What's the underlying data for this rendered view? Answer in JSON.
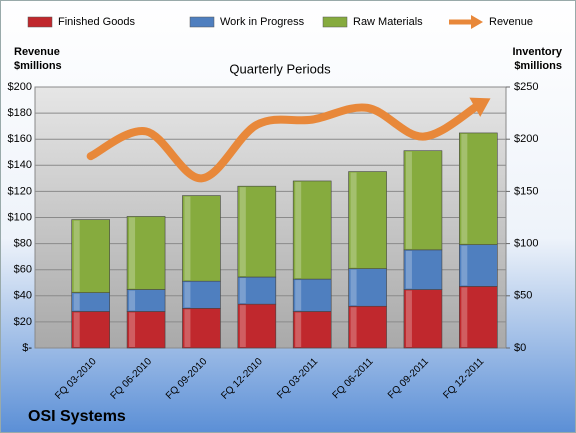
{
  "chart_data": {
    "type": "bar",
    "title": "OSI Systems",
    "subtitle": "Quarterly Periods",
    "ylabel": [
      "Revenue",
      "$millions"
    ],
    "y2label": [
      "Inventory",
      "$millions"
    ],
    "categories": [
      "FQ 03-2010",
      "FQ 06-2010",
      "FQ 09-2010",
      "FQ 12-2010",
      "FQ 03-2011",
      "FQ 06-2011",
      "FQ 09-2011",
      "FQ 12-2011"
    ],
    "stacked": true,
    "grid": true,
    "legend": "top",
    "series": [
      {
        "name": "Finished Goods",
        "type": "bar",
        "axis": "y2",
        "color": "#c0282d",
        "values": [
          35,
          35,
          38,
          42,
          35,
          40,
          56,
          59
        ]
      },
      {
        "name": "Work in Progress",
        "type": "bar",
        "axis": "y2",
        "color": "#4f7fbf",
        "values": [
          18,
          21,
          26,
          26,
          31,
          36,
          38,
          40
        ]
      },
      {
        "name": "Raw Materials",
        "type": "bar",
        "axis": "y2",
        "color": "#86ab3e",
        "values": [
          70,
          70,
          82,
          87,
          94,
          93,
          95,
          107
        ]
      },
      {
        "name": "Revenue",
        "type": "line",
        "axis": "y",
        "color": "#e8883a",
        "values": [
          147,
          166,
          130,
          171,
          175,
          184,
          162,
          186
        ]
      }
    ],
    "ylim": [
      0,
      200
    ],
    "yticks": [
      {
        "value": 0,
        "label": "$-"
      },
      {
        "value": 20,
        "label": "$20"
      },
      {
        "value": 40,
        "label": "$40"
      },
      {
        "value": 60,
        "label": "$60"
      },
      {
        "value": 80,
        "label": "$80"
      },
      {
        "value": 100,
        "label": "$100"
      },
      {
        "value": 120,
        "label": "$120"
      },
      {
        "value": 140,
        "label": "$140"
      },
      {
        "value": 160,
        "label": "$160"
      },
      {
        "value": 180,
        "label": "$180"
      },
      {
        "value": 200,
        "label": "$200"
      }
    ],
    "y2lim": [
      0,
      250
    ],
    "y2ticks": [
      {
        "value": 0,
        "label": "$0"
      },
      {
        "value": 50,
        "label": "$50"
      },
      {
        "value": 100,
        "label": "$100"
      },
      {
        "value": 150,
        "label": "$150"
      },
      {
        "value": 200,
        "label": "$200"
      },
      {
        "value": 250,
        "label": "$250"
      }
    ]
  }
}
